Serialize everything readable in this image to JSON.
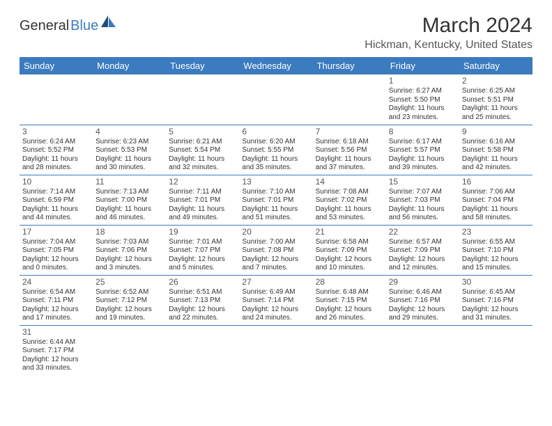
{
  "brand": {
    "part1": "General",
    "part2": "Blue"
  },
  "title": "March 2024",
  "location": "Hickman, Kentucky, United States",
  "colors": {
    "header_bg": "#3b7bbf",
    "header_fg": "#ffffff",
    "rule": "#3b7bbf",
    "text": "#333333",
    "muted": "#555555",
    "bg": "#ffffff"
  },
  "weekdays": [
    "Sunday",
    "Monday",
    "Tuesday",
    "Wednesday",
    "Thursday",
    "Friday",
    "Saturday"
  ],
  "weeks": [
    [
      null,
      null,
      null,
      null,
      null,
      {
        "n": "1",
        "sr": "Sunrise: 6:27 AM",
        "ss": "Sunset: 5:50 PM",
        "d1": "Daylight: 11 hours",
        "d2": "and 23 minutes."
      },
      {
        "n": "2",
        "sr": "Sunrise: 6:25 AM",
        "ss": "Sunset: 5:51 PM",
        "d1": "Daylight: 11 hours",
        "d2": "and 25 minutes."
      }
    ],
    [
      {
        "n": "3",
        "sr": "Sunrise: 6:24 AM",
        "ss": "Sunset: 5:52 PM",
        "d1": "Daylight: 11 hours",
        "d2": "and 28 minutes."
      },
      {
        "n": "4",
        "sr": "Sunrise: 6:23 AM",
        "ss": "Sunset: 5:53 PM",
        "d1": "Daylight: 11 hours",
        "d2": "and 30 minutes."
      },
      {
        "n": "5",
        "sr": "Sunrise: 6:21 AM",
        "ss": "Sunset: 5:54 PM",
        "d1": "Daylight: 11 hours",
        "d2": "and 32 minutes."
      },
      {
        "n": "6",
        "sr": "Sunrise: 6:20 AM",
        "ss": "Sunset: 5:55 PM",
        "d1": "Daylight: 11 hours",
        "d2": "and 35 minutes."
      },
      {
        "n": "7",
        "sr": "Sunrise: 6:18 AM",
        "ss": "Sunset: 5:56 PM",
        "d1": "Daylight: 11 hours",
        "d2": "and 37 minutes."
      },
      {
        "n": "8",
        "sr": "Sunrise: 6:17 AM",
        "ss": "Sunset: 5:57 PM",
        "d1": "Daylight: 11 hours",
        "d2": "and 39 minutes."
      },
      {
        "n": "9",
        "sr": "Sunrise: 6:16 AM",
        "ss": "Sunset: 5:58 PM",
        "d1": "Daylight: 11 hours",
        "d2": "and 42 minutes."
      }
    ],
    [
      {
        "n": "10",
        "sr": "Sunrise: 7:14 AM",
        "ss": "Sunset: 6:59 PM",
        "d1": "Daylight: 11 hours",
        "d2": "and 44 minutes."
      },
      {
        "n": "11",
        "sr": "Sunrise: 7:13 AM",
        "ss": "Sunset: 7:00 PM",
        "d1": "Daylight: 11 hours",
        "d2": "and 46 minutes."
      },
      {
        "n": "12",
        "sr": "Sunrise: 7:11 AM",
        "ss": "Sunset: 7:01 PM",
        "d1": "Daylight: 11 hours",
        "d2": "and 49 minutes."
      },
      {
        "n": "13",
        "sr": "Sunrise: 7:10 AM",
        "ss": "Sunset: 7:01 PM",
        "d1": "Daylight: 11 hours",
        "d2": "and 51 minutes."
      },
      {
        "n": "14",
        "sr": "Sunrise: 7:08 AM",
        "ss": "Sunset: 7:02 PM",
        "d1": "Daylight: 11 hours",
        "d2": "and 53 minutes."
      },
      {
        "n": "15",
        "sr": "Sunrise: 7:07 AM",
        "ss": "Sunset: 7:03 PM",
        "d1": "Daylight: 11 hours",
        "d2": "and 56 minutes."
      },
      {
        "n": "16",
        "sr": "Sunrise: 7:06 AM",
        "ss": "Sunset: 7:04 PM",
        "d1": "Daylight: 11 hours",
        "d2": "and 58 minutes."
      }
    ],
    [
      {
        "n": "17",
        "sr": "Sunrise: 7:04 AM",
        "ss": "Sunset: 7:05 PM",
        "d1": "Daylight: 12 hours",
        "d2": "and 0 minutes."
      },
      {
        "n": "18",
        "sr": "Sunrise: 7:03 AM",
        "ss": "Sunset: 7:06 PM",
        "d1": "Daylight: 12 hours",
        "d2": "and 3 minutes."
      },
      {
        "n": "19",
        "sr": "Sunrise: 7:01 AM",
        "ss": "Sunset: 7:07 PM",
        "d1": "Daylight: 12 hours",
        "d2": "and 5 minutes."
      },
      {
        "n": "20",
        "sr": "Sunrise: 7:00 AM",
        "ss": "Sunset: 7:08 PM",
        "d1": "Daylight: 12 hours",
        "d2": "and 7 minutes."
      },
      {
        "n": "21",
        "sr": "Sunrise: 6:58 AM",
        "ss": "Sunset: 7:09 PM",
        "d1": "Daylight: 12 hours",
        "d2": "and 10 minutes."
      },
      {
        "n": "22",
        "sr": "Sunrise: 6:57 AM",
        "ss": "Sunset: 7:09 PM",
        "d1": "Daylight: 12 hours",
        "d2": "and 12 minutes."
      },
      {
        "n": "23",
        "sr": "Sunrise: 6:55 AM",
        "ss": "Sunset: 7:10 PM",
        "d1": "Daylight: 12 hours",
        "d2": "and 15 minutes."
      }
    ],
    [
      {
        "n": "24",
        "sr": "Sunrise: 6:54 AM",
        "ss": "Sunset: 7:11 PM",
        "d1": "Daylight: 12 hours",
        "d2": "and 17 minutes."
      },
      {
        "n": "25",
        "sr": "Sunrise: 6:52 AM",
        "ss": "Sunset: 7:12 PM",
        "d1": "Daylight: 12 hours",
        "d2": "and 19 minutes."
      },
      {
        "n": "26",
        "sr": "Sunrise: 6:51 AM",
        "ss": "Sunset: 7:13 PM",
        "d1": "Daylight: 12 hours",
        "d2": "and 22 minutes."
      },
      {
        "n": "27",
        "sr": "Sunrise: 6:49 AM",
        "ss": "Sunset: 7:14 PM",
        "d1": "Daylight: 12 hours",
        "d2": "and 24 minutes."
      },
      {
        "n": "28",
        "sr": "Sunrise: 6:48 AM",
        "ss": "Sunset: 7:15 PM",
        "d1": "Daylight: 12 hours",
        "d2": "and 26 minutes."
      },
      {
        "n": "29",
        "sr": "Sunrise: 6:46 AM",
        "ss": "Sunset: 7:16 PM",
        "d1": "Daylight: 12 hours",
        "d2": "and 29 minutes."
      },
      {
        "n": "30",
        "sr": "Sunrise: 6:45 AM",
        "ss": "Sunset: 7:16 PM",
        "d1": "Daylight: 12 hours",
        "d2": "and 31 minutes."
      }
    ],
    [
      {
        "n": "31",
        "sr": "Sunrise: 6:44 AM",
        "ss": "Sunset: 7:17 PM",
        "d1": "Daylight: 12 hours",
        "d2": "and 33 minutes."
      },
      null,
      null,
      null,
      null,
      null,
      null
    ]
  ]
}
